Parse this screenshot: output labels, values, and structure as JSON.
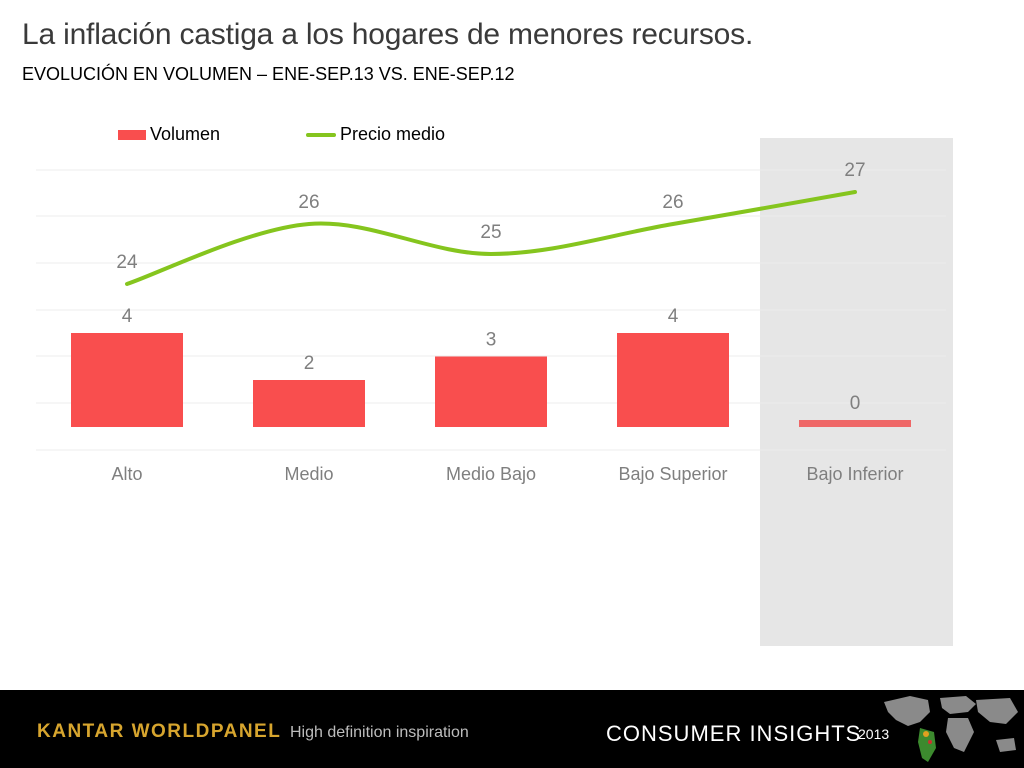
{
  "header": {
    "title": "La inflación castiga a los hogares de menores recursos.",
    "subtitle": "EVOLUCIÓN EN VOLUMEN – ENE-SEP.13  VS. ENE-SEP.12"
  },
  "legend": {
    "volumen": "Volumen",
    "precio": "Precio medio"
  },
  "colors": {
    "bar": "#f94e4e",
    "bar_highlight": "#ef6767",
    "line": "#85c51e",
    "highlight_band": "#e6e6e6",
    "label": "#7f7f7f"
  },
  "chart_data": {
    "type": "bar",
    "categories": [
      "Alto",
      "Medio",
      "Medio Bajo",
      "Bajo Superior",
      "Bajo Inferior"
    ],
    "series": [
      {
        "name": "Volumen",
        "type": "bar",
        "values": [
          4,
          2,
          3,
          4,
          0
        ]
      },
      {
        "name": "Precio medio",
        "type": "line",
        "values": [
          24,
          26,
          25,
          26,
          27
        ]
      }
    ],
    "highlighted_category": "Bajo Inferior",
    "legend_position": "top-left",
    "grid": true
  },
  "footer": {
    "brand": "KANTAR WORLDPANEL",
    "tagline": "High definition inspiration",
    "section": "CONSUMER INSIGHTS",
    "year": "2013"
  }
}
